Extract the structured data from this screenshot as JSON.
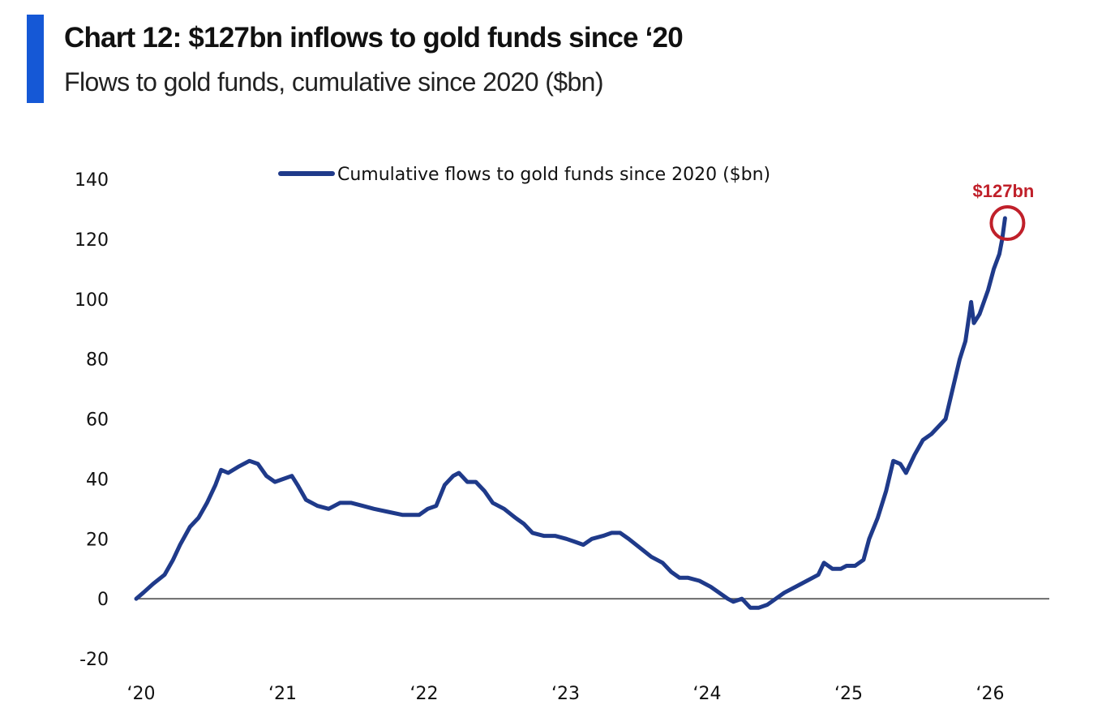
{
  "header": {
    "title": "Chart 12: $127bn inflows to gold funds since ‘20",
    "subtitle": "Flows to gold funds, cumulative since 2020 ($bn)",
    "accent_color": "#1558d6"
  },
  "chart_data": {
    "type": "line",
    "title": "Chart 12: $127bn inflows to gold funds since ‘20",
    "subtitle": "Flows to gold funds, cumulative since 2020 ($bn)",
    "xlabel": "",
    "ylabel": "",
    "xlim": [
      2020,
      2026.45
    ],
    "ylim": [
      -20,
      140
    ],
    "yticks": [
      140,
      120,
      100,
      80,
      60,
      40,
      20,
      0,
      -20
    ],
    "ytick_labels": [
      "140",
      "120",
      "100",
      "80",
      "60",
      "40",
      "20",
      "0",
      "-20"
    ],
    "xticks": [
      2020,
      2021,
      2022,
      2023,
      2024,
      2025,
      2026
    ],
    "xtick_labels": [
      "‘20",
      "‘21",
      "‘22",
      "‘23",
      "‘24",
      "‘25",
      "‘26"
    ],
    "grid": false,
    "zero_line": true,
    "legend": {
      "position": "top-center",
      "entries": [
        "Cumulative flows to gold funds since 2020 ($bn)"
      ]
    },
    "series": [
      {
        "name": "Cumulative flows to gold funds since 2020 ($bn)",
        "color": "#1f3a8a",
        "points": [
          [
            2020.0,
            0
          ],
          [
            2020.05,
            2
          ],
          [
            2020.12,
            5
          ],
          [
            2020.2,
            8
          ],
          [
            2020.26,
            13
          ],
          [
            2020.31,
            18
          ],
          [
            2020.38,
            24
          ],
          [
            2020.44,
            27
          ],
          [
            2020.5,
            32
          ],
          [
            2020.56,
            38
          ],
          [
            2020.6,
            43
          ],
          [
            2020.65,
            42
          ],
          [
            2020.72,
            44
          ],
          [
            2020.8,
            46
          ],
          [
            2020.86,
            45
          ],
          [
            2020.92,
            41
          ],
          [
            2020.98,
            39
          ],
          [
            2021.04,
            40
          ],
          [
            2021.1,
            41
          ],
          [
            2021.14,
            38
          ],
          [
            2021.2,
            33
          ],
          [
            2021.28,
            31
          ],
          [
            2021.36,
            30
          ],
          [
            2021.44,
            32
          ],
          [
            2021.52,
            32
          ],
          [
            2021.6,
            31
          ],
          [
            2021.68,
            30
          ],
          [
            2021.78,
            29
          ],
          [
            2021.88,
            28
          ],
          [
            2021.94,
            28
          ],
          [
            2022.0,
            28
          ],
          [
            2022.06,
            30
          ],
          [
            2022.12,
            31
          ],
          [
            2022.18,
            38
          ],
          [
            2022.24,
            41
          ],
          [
            2022.28,
            42
          ],
          [
            2022.34,
            39
          ],
          [
            2022.4,
            39
          ],
          [
            2022.46,
            36
          ],
          [
            2022.52,
            32
          ],
          [
            2022.6,
            30
          ],
          [
            2022.68,
            27
          ],
          [
            2022.74,
            25
          ],
          [
            2022.8,
            22
          ],
          [
            2022.88,
            21
          ],
          [
            2022.96,
            21
          ],
          [
            2023.04,
            20
          ],
          [
            2023.1,
            19
          ],
          [
            2023.16,
            18
          ],
          [
            2023.22,
            20
          ],
          [
            2023.3,
            21
          ],
          [
            2023.36,
            22
          ],
          [
            2023.42,
            22
          ],
          [
            2023.48,
            20
          ],
          [
            2023.56,
            17
          ],
          [
            2023.64,
            14
          ],
          [
            2023.72,
            12
          ],
          [
            2023.78,
            9
          ],
          [
            2023.84,
            7
          ],
          [
            2023.9,
            7
          ],
          [
            2023.98,
            6
          ],
          [
            2024.06,
            4
          ],
          [
            2024.12,
            2
          ],
          [
            2024.18,
            0
          ],
          [
            2024.22,
            -1
          ],
          [
            2024.28,
            0
          ],
          [
            2024.34,
            -3
          ],
          [
            2024.4,
            -3
          ],
          [
            2024.46,
            -2
          ],
          [
            2024.52,
            0
          ],
          [
            2024.58,
            2
          ],
          [
            2024.66,
            4
          ],
          [
            2024.74,
            6
          ],
          [
            2024.82,
            8
          ],
          [
            2024.86,
            12
          ],
          [
            2024.92,
            10
          ],
          [
            2024.98,
            10
          ],
          [
            2025.02,
            11
          ],
          [
            2025.08,
            11
          ],
          [
            2025.14,
            13
          ],
          [
            2025.18,
            20
          ],
          [
            2025.24,
            27
          ],
          [
            2025.3,
            36
          ],
          [
            2025.35,
            46
          ],
          [
            2025.4,
            45
          ],
          [
            2025.44,
            42
          ],
          [
            2025.5,
            48
          ],
          [
            2025.56,
            53
          ],
          [
            2025.62,
            55
          ],
          [
            2025.68,
            58
          ],
          [
            2025.72,
            60
          ],
          [
            2025.76,
            68
          ],
          [
            2025.82,
            80
          ],
          [
            2025.86,
            86
          ],
          [
            2025.9,
            99
          ],
          [
            2025.92,
            92
          ],
          [
            2025.96,
            95
          ],
          [
            2026.02,
            103
          ],
          [
            2026.06,
            110
          ],
          [
            2026.1,
            115
          ],
          [
            2026.12,
            120
          ],
          [
            2026.14,
            127
          ]
        ]
      }
    ],
    "annotations": [
      {
        "text": "$127bn",
        "x": 2026.14,
        "y": 127,
        "style": "red circle around last point",
        "color": "#c0202a"
      }
    ]
  }
}
